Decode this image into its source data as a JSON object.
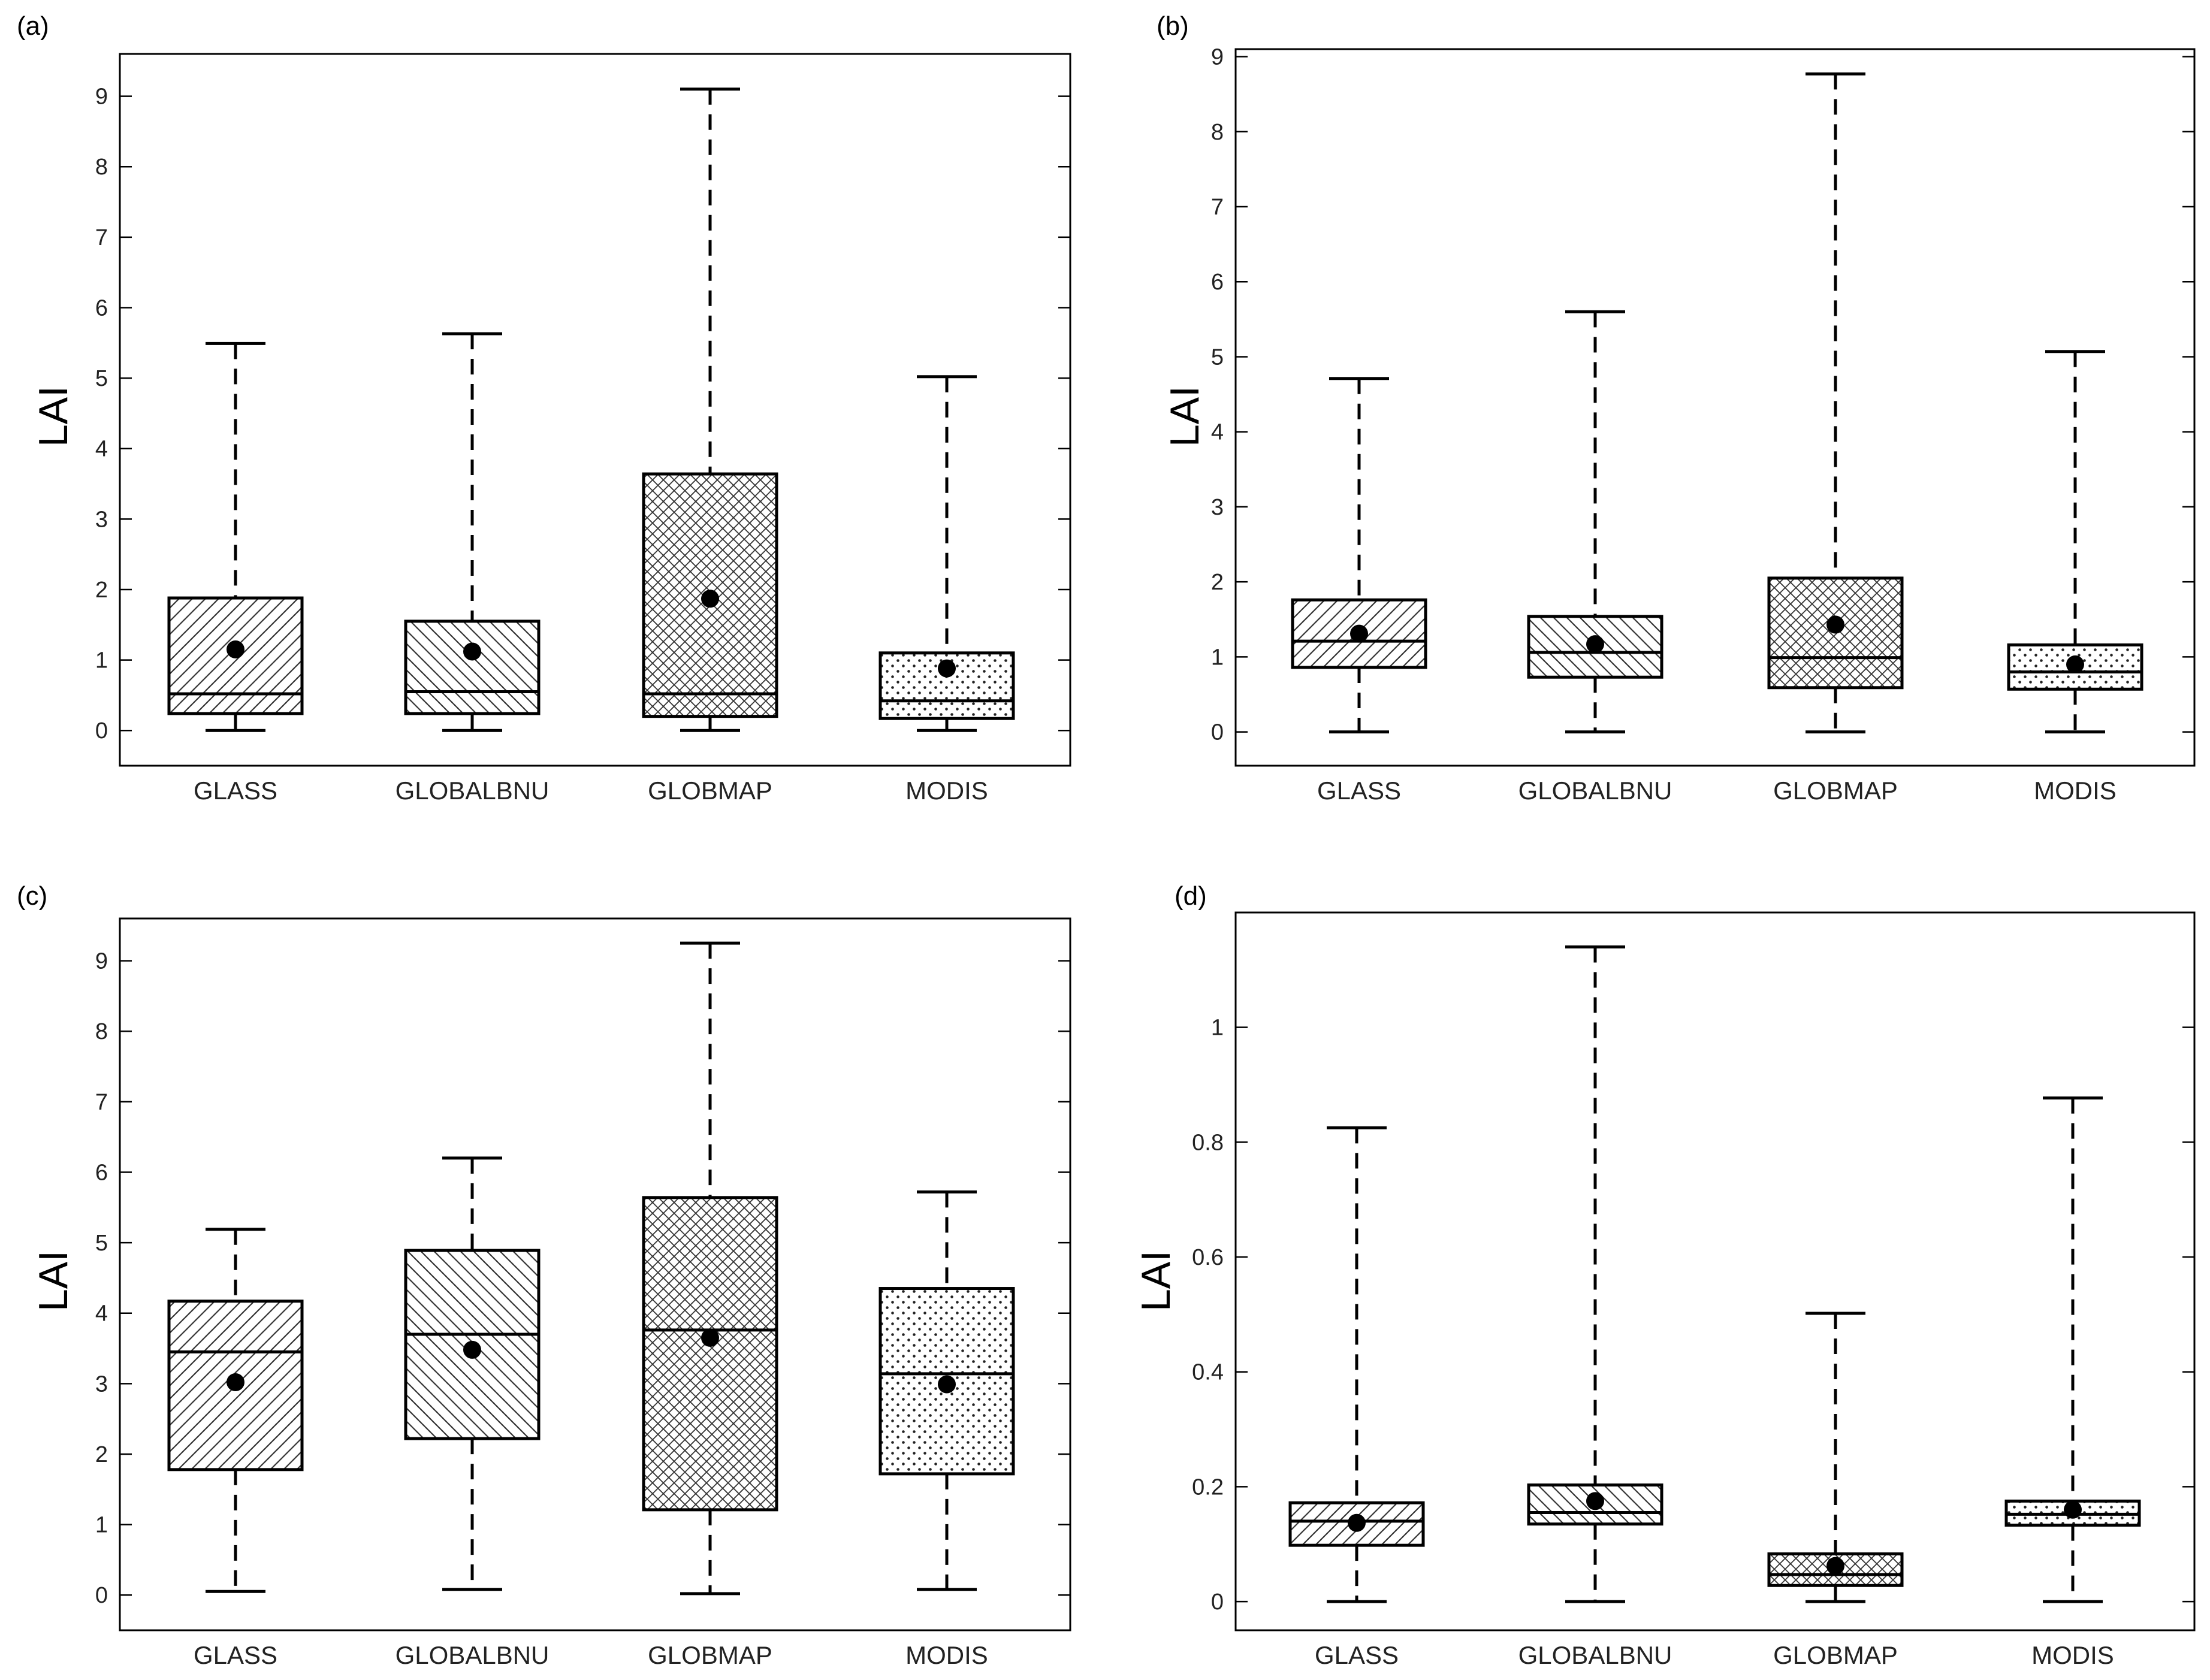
{
  "figure": {
    "type": "boxplot-panels"
  },
  "chart_data": [
    {
      "type": "boxplot",
      "panel_label": "(a)",
      "ylabel": "LAI",
      "ylim": [
        -0.5,
        9.6
      ],
      "yticks": [
        0,
        1,
        2,
        3,
        4,
        5,
        6,
        7,
        8,
        9
      ],
      "categories": [
        "GLASS",
        "GLOBALBNU",
        "GLOBMAP",
        "MODIS"
      ],
      "boxes": [
        {
          "name": "GLASS",
          "min": 0.0,
          "q1": 0.24,
          "median": 0.52,
          "q3": 1.88,
          "max": 5.49,
          "mean": 1.15,
          "pattern": "diag-fwd"
        },
        {
          "name": "GLOBALBNU",
          "min": 0.0,
          "q1": 0.24,
          "median": 0.55,
          "q3": 1.55,
          "max": 5.63,
          "mean": 1.12,
          "pattern": "diag-back"
        },
        {
          "name": "GLOBMAP",
          "min": 0.0,
          "q1": 0.2,
          "median": 0.52,
          "q3": 3.64,
          "max": 9.1,
          "mean": 1.87,
          "pattern": "crosshatch"
        },
        {
          "name": "MODIS",
          "min": 0.0,
          "q1": 0.17,
          "median": 0.42,
          "q3": 1.1,
          "max": 5.02,
          "mean": 0.88,
          "pattern": "dots"
        }
      ]
    },
    {
      "type": "boxplot",
      "panel_label": "(b)",
      "ylabel": "LAI",
      "ylim": [
        -0.45,
        9.1
      ],
      "yticks": [
        0,
        1,
        2,
        3,
        4,
        5,
        6,
        7,
        8,
        9
      ],
      "categories": [
        "GLASS",
        "GLOBALBNU",
        "GLOBMAP",
        "MODIS"
      ],
      "boxes": [
        {
          "name": "GLASS",
          "min": 0.0,
          "q1": 0.86,
          "median": 1.21,
          "q3": 1.76,
          "max": 4.71,
          "mean": 1.31,
          "pattern": "diag-fwd"
        },
        {
          "name": "GLOBALBNU",
          "min": 0.0,
          "q1": 0.73,
          "median": 1.06,
          "q3": 1.54,
          "max": 5.6,
          "mean": 1.17,
          "pattern": "diag-back"
        },
        {
          "name": "GLOBMAP",
          "min": 0.0,
          "q1": 0.59,
          "median": 0.99,
          "q3": 2.05,
          "max": 8.77,
          "mean": 1.43,
          "pattern": "crosshatch"
        },
        {
          "name": "MODIS",
          "min": 0.0,
          "q1": 0.57,
          "median": 0.8,
          "q3": 1.16,
          "max": 5.07,
          "mean": 0.9,
          "pattern": "dots"
        }
      ]
    },
    {
      "type": "boxplot",
      "panel_label": "(c)",
      "ylabel": "LAI",
      "ylim": [
        -0.5,
        9.6
      ],
      "yticks": [
        0,
        1,
        2,
        3,
        4,
        5,
        6,
        7,
        8,
        9
      ],
      "categories": [
        "GLASS",
        "GLOBALBNU",
        "GLOBMAP",
        "MODIS"
      ],
      "boxes": [
        {
          "name": "GLASS",
          "min": 0.05,
          "q1": 1.78,
          "median": 3.45,
          "q3": 4.17,
          "max": 5.19,
          "mean": 3.02,
          "pattern": "diag-fwd"
        },
        {
          "name": "GLOBALBNU",
          "min": 0.08,
          "q1": 2.22,
          "median": 3.7,
          "q3": 4.89,
          "max": 6.2,
          "mean": 3.48,
          "pattern": "diag-back"
        },
        {
          "name": "GLOBMAP",
          "min": 0.02,
          "q1": 1.21,
          "median": 3.76,
          "q3": 5.64,
          "max": 9.25,
          "mean": 3.65,
          "pattern": "crosshatch"
        },
        {
          "name": "MODIS",
          "min": 0.08,
          "q1": 1.72,
          "median": 3.14,
          "q3": 4.35,
          "max": 5.72,
          "mean": 2.99,
          "pattern": "dots"
        }
      ]
    },
    {
      "type": "boxplot",
      "panel_label": "(d)",
      "ylabel": "LAI",
      "ylim": [
        -0.05,
        1.2
      ],
      "yticks": [
        0,
        0.2,
        0.4,
        0.6,
        0.8,
        1
      ],
      "ytick_labels": [
        "0",
        "0.2",
        "0.4",
        "0.6",
        "0.8",
        "1"
      ],
      "categories": [
        "GLASS",
        "GLOBALBNU",
        "GLOBMAP",
        "MODIS"
      ],
      "boxes": [
        {
          "name": "GLASS",
          "min": 0.0,
          "q1": 0.098,
          "median": 0.14,
          "q3": 0.172,
          "max": 0.825,
          "mean": 0.137,
          "pattern": "diag-fwd"
        },
        {
          "name": "GLOBALBNU",
          "min": 0.0,
          "q1": 0.135,
          "median": 0.155,
          "q3": 0.203,
          "max": 1.14,
          "mean": 0.175,
          "pattern": "diag-back"
        },
        {
          "name": "GLOBMAP",
          "min": 0.0,
          "q1": 0.028,
          "median": 0.047,
          "q3": 0.083,
          "max": 0.502,
          "mean": 0.062,
          "pattern": "crosshatch"
        },
        {
          "name": "MODIS",
          "min": 0.0,
          "q1": 0.133,
          "median": 0.152,
          "q3": 0.175,
          "max": 0.877,
          "mean": 0.16,
          "pattern": "dots"
        }
      ]
    }
  ]
}
